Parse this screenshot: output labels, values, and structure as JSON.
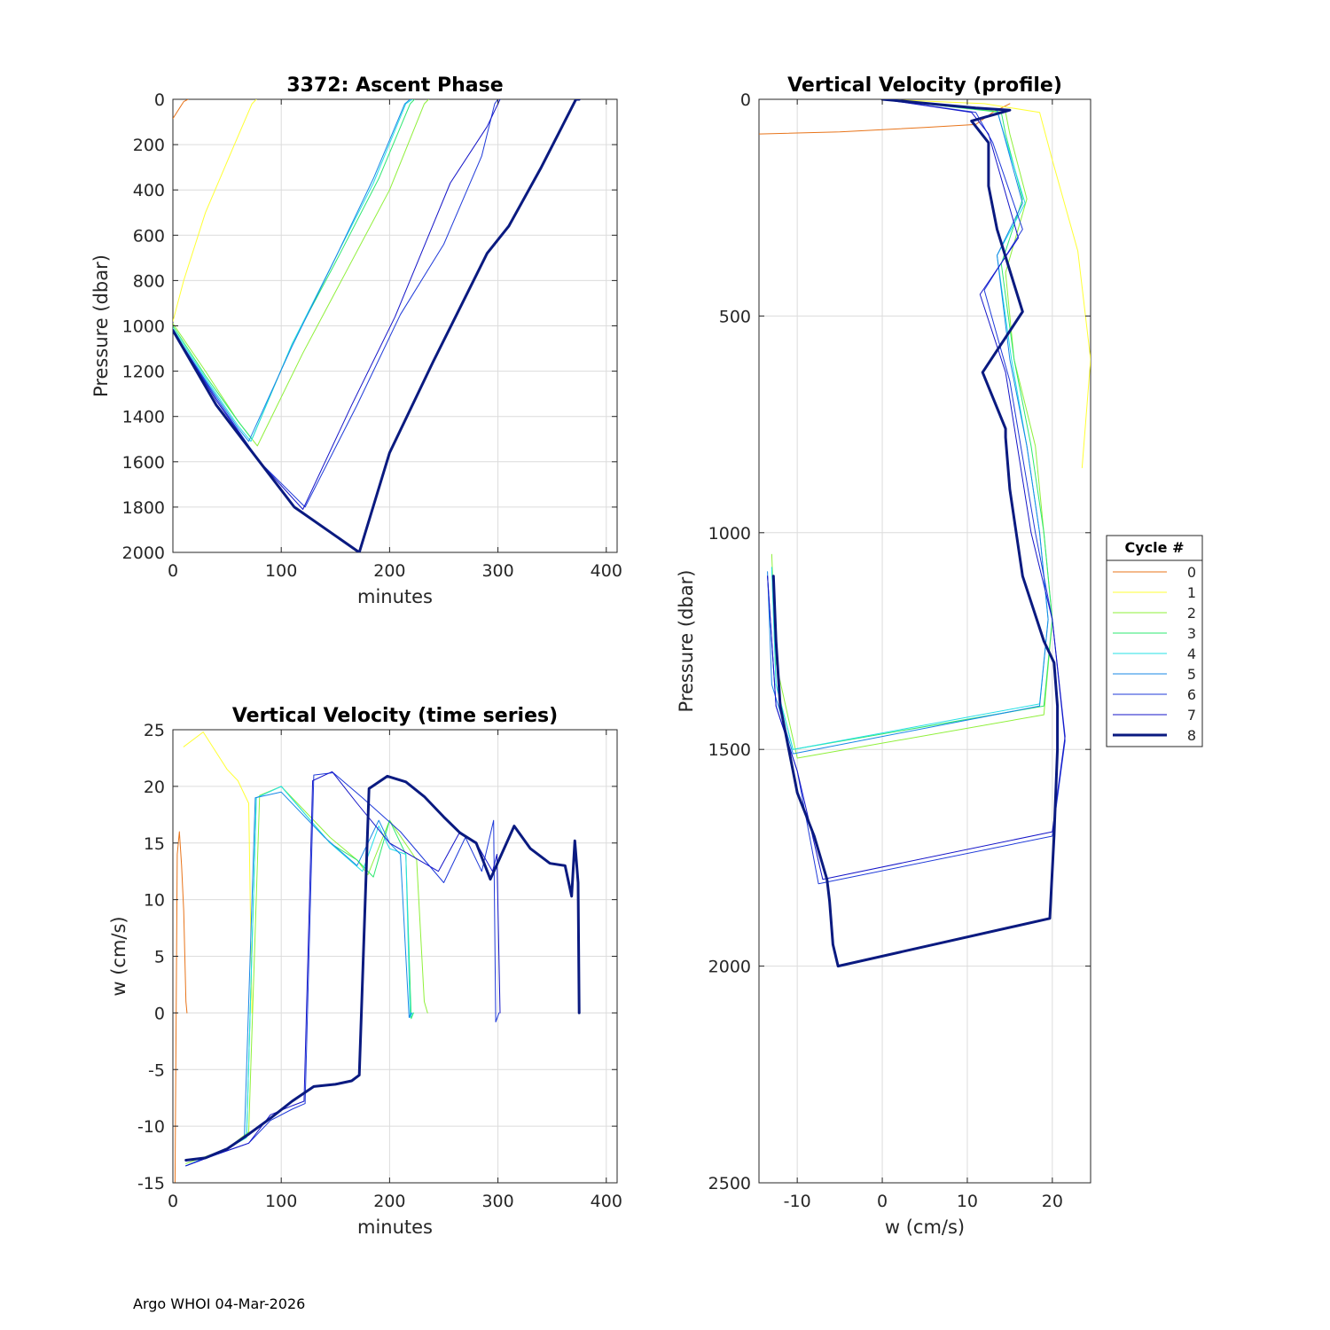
{
  "footer": "Argo WHOI 04-Mar-2026",
  "legend": {
    "title": "Cycle #",
    "placement": "right of profile panel",
    "entries": [
      {
        "label": "0",
        "color": "#e8741a",
        "width": 1
      },
      {
        "label": "1",
        "color": "#ffff33",
        "width": 1
      },
      {
        "label": "2",
        "color": "#8ff03a",
        "width": 1
      },
      {
        "label": "3",
        "color": "#2ee870",
        "width": 1
      },
      {
        "label": "4",
        "color": "#26e0e6",
        "width": 1
      },
      {
        "label": "5",
        "color": "#1787e6",
        "width": 1
      },
      {
        "label": "6",
        "color": "#1f3ad9",
        "width": 1
      },
      {
        "label": "7",
        "color": "#1414c8",
        "width": 1
      },
      {
        "label": "8",
        "color": "#0a1a80",
        "width": 3
      }
    ]
  },
  "chart_data": [
    {
      "id": "ascent",
      "type": "line",
      "title": "3372: Ascent Phase",
      "xlabel": "minutes",
      "ylabel": "Pressure (dbar)",
      "xlim": [
        0,
        410
      ],
      "ylim": [
        0,
        2000
      ],
      "y_reversed": true,
      "xticks": [
        0,
        100,
        200,
        300,
        400
      ],
      "yticks": [
        0,
        200,
        400,
        600,
        800,
        1000,
        1200,
        1400,
        1600,
        1800,
        2000
      ],
      "xticklabels": [
        "0",
        "100",
        "200",
        "300",
        "400"
      ],
      "yticklabels": [
        "0",
        "200",
        "400",
        "600",
        "800",
        "1000",
        "1200",
        "1400",
        "1600",
        "1800",
        "2000"
      ],
      "grid": true,
      "series": [
        {
          "name": "0",
          "x": [
            0,
            6,
            10,
            14
          ],
          "y": [
            85,
            40,
            10,
            0
          ]
        },
        {
          "name": "1",
          "x": [
            0,
            10,
            30,
            55,
            73,
            77
          ],
          "y": [
            980,
            800,
            500,
            220,
            20,
            0
          ]
        },
        {
          "name": "2",
          "x": [
            0,
            30,
            60,
            78,
            120,
            160,
            200,
            232,
            236
          ],
          "y": [
            990,
            1200,
            1420,
            1530,
            1120,
            760,
            400,
            20,
            0
          ]
        },
        {
          "name": "3",
          "x": [
            0,
            30,
            60,
            73,
            110,
            150,
            190,
            219,
            223
          ],
          "y": [
            1000,
            1220,
            1420,
            1500,
            1080,
            720,
            350,
            20,
            0
          ]
        },
        {
          "name": "4",
          "x": [
            0,
            30,
            60,
            72,
            110,
            150,
            185,
            215,
            221
          ],
          "y": [
            1010,
            1230,
            1440,
            1510,
            1080,
            700,
            370,
            20,
            0
          ]
        },
        {
          "name": "5",
          "x": [
            0,
            30,
            60,
            70,
            110,
            150,
            185,
            214,
            219
          ],
          "y": [
            1020,
            1240,
            1450,
            1510,
            1090,
            700,
            350,
            20,
            0
          ]
        },
        {
          "name": "6",
          "x": [
            0,
            40,
            80,
            122,
            170,
            210,
            250,
            285,
            297,
            300
          ],
          "y": [
            1020,
            1320,
            1600,
            1800,
            1350,
            950,
            640,
            250,
            20,
            0
          ]
        },
        {
          "name": "7",
          "x": [
            0,
            40,
            80,
            120,
            165,
            205,
            256,
            290,
            300,
            302
          ],
          "y": [
            1020,
            1330,
            1600,
            1810,
            1350,
            960,
            370,
            120,
            20,
            0
          ]
        },
        {
          "name": "8",
          "x": [
            0,
            40,
            80,
            112,
            172,
            200,
            240,
            290,
            310,
            340,
            372,
            375
          ],
          "y": [
            1020,
            1350,
            1600,
            1800,
            2000,
            1560,
            1160,
            680,
            560,
            300,
            0,
            0
          ]
        }
      ]
    },
    {
      "id": "wtime",
      "type": "line",
      "title": "Vertical Velocity (time series)",
      "xlabel": "minutes",
      "ylabel": "w (cm/s)",
      "xlim": [
        0,
        410
      ],
      "ylim": [
        -15,
        25
      ],
      "xticks": [
        0,
        100,
        200,
        300,
        400
      ],
      "yticks": [
        -15,
        -10,
        -5,
        0,
        5,
        10,
        15,
        20,
        25
      ],
      "xticklabels": [
        "0",
        "100",
        "200",
        "300",
        "400"
      ],
      "yticklabels": [
        "-15",
        "-10",
        "-5",
        "0",
        "5",
        "10",
        "15",
        "20",
        "25"
      ],
      "grid": true,
      "series": [
        {
          "name": "0",
          "x": [
            2,
            4,
            6,
            8,
            10,
            12,
            13
          ],
          "y": [
            -15,
            14,
            16,
            13,
            9,
            1,
            0
          ]
        },
        {
          "name": "1",
          "x": [
            10,
            28,
            50,
            60,
            70,
            73
          ],
          "y": [
            23.5,
            24.8,
            21.5,
            20.5,
            18.5,
            0
          ]
        },
        {
          "name": "2",
          "x": [
            12,
            50,
            70,
            80,
            100,
            145,
            170,
            180,
            200,
            225,
            232,
            235
          ],
          "y": [
            -13.3,
            -12,
            -10.5,
            19.2,
            20,
            15.5,
            13.5,
            12.2,
            17,
            13.5,
            1,
            0
          ]
        },
        {
          "name": "3",
          "x": [
            12,
            50,
            68,
            77,
            100,
            145,
            170,
            185,
            200,
            215,
            220,
            222
          ],
          "y": [
            -13.5,
            -12,
            -11,
            19,
            20,
            15,
            13.5,
            12,
            17,
            14,
            -0.5,
            0
          ]
        },
        {
          "name": "4",
          "x": [
            12,
            50,
            68,
            77,
            100,
            145,
            175,
            190,
            200,
            215,
            219,
            221
          ],
          "y": [
            -13.5,
            -12,
            -11,
            19,
            20,
            15,
            12.5,
            16.5,
            14.5,
            14,
            -0.4,
            0
          ]
        },
        {
          "name": "5",
          "x": [
            12,
            50,
            66,
            76,
            100,
            140,
            170,
            190,
            200,
            210,
            218,
            220
          ],
          "y": [
            -13.5,
            -12,
            -11,
            19,
            19.5,
            15.5,
            13,
            17,
            15,
            14,
            -0.4,
            0
          ]
        },
        {
          "name": "6",
          "x": [
            12,
            40,
            70,
            90,
            110,
            122,
            130,
            148,
            175,
            210,
            250,
            270,
            285,
            296,
            298,
            301
          ],
          "y": [
            -13.5,
            -12.5,
            -11.5,
            -9.5,
            -8.5,
            -8,
            21,
            21.2,
            19,
            16,
            11.5,
            15.5,
            12.5,
            17,
            -0.8,
            0
          ]
        },
        {
          "name": "7",
          "x": [
            12,
            40,
            70,
            90,
            110,
            121,
            129,
            147,
            170,
            200,
            245,
            265,
            280,
            295,
            299,
            302
          ],
          "y": [
            -13.5,
            -12.5,
            -11.5,
            -9,
            -8.2,
            -7.8,
            20.5,
            21.3,
            18.5,
            15,
            12.5,
            16,
            15,
            12.5,
            14,
            0
          ]
        },
        {
          "name": "8",
          "x": [
            12,
            30,
            50,
            70,
            90,
            110,
            130,
            150,
            165,
            172,
            181,
            198,
            215,
            232,
            250,
            265,
            280,
            293,
            315,
            330,
            348,
            362,
            368,
            371,
            374,
            375
          ],
          "y": [
            -13,
            -12.8,
            -12,
            -10.7,
            -9.3,
            -7.8,
            -6.5,
            -6.3,
            -6,
            -5.5,
            19.8,
            20.9,
            20.4,
            19.1,
            17.3,
            15.9,
            15,
            11.8,
            16.5,
            14.5,
            13.2,
            13,
            10.3,
            15.2,
            11.5,
            0
          ]
        }
      ]
    },
    {
      "id": "wprofile",
      "type": "line",
      "title": "Vertical Velocity (profile)",
      "xlabel": "w (cm/s)",
      "ylabel": "Pressure (dbar)",
      "xlim": [
        -14.5,
        24.5
      ],
      "ylim": [
        0,
        2500
      ],
      "y_reversed": true,
      "xticks": [
        -10,
        0,
        10,
        20
      ],
      "yticks": [
        0,
        500,
        1000,
        1500,
        2000,
        2500
      ],
      "xticklabels": [
        "-10",
        "0",
        "10",
        "20"
      ],
      "yticklabels": [
        "0",
        "500",
        "1000",
        "1500",
        "2000",
        "2500"
      ],
      "grid": true,
      "series": [
        {
          "name": "0",
          "x": [
            -14.5,
            -5,
            5,
            11,
            13,
            15
          ],
          "y": [
            80,
            75,
            65,
            58,
            30,
            10
          ]
        },
        {
          "name": "1",
          "x": [
            0,
            12,
            18.5,
            20,
            23,
            24.5,
            23.5
          ],
          "y": [
            0,
            10,
            30,
            140,
            350,
            600,
            850
          ]
        },
        {
          "name": "2",
          "x": [
            -13,
            -12.5,
            -10,
            19,
            20,
            19,
            18,
            15.5,
            14.5,
            17,
            15,
            14.5,
            0
          ],
          "y": [
            1050,
            1300,
            1520,
            1420,
            1200,
            1000,
            800,
            600,
            400,
            230,
            80,
            30,
            0
          ]
        },
        {
          "name": "3",
          "x": [
            -13,
            -12.5,
            -10.5,
            19,
            20,
            19,
            17.5,
            15.5,
            14,
            16.5,
            14.5,
            14,
            0
          ],
          "y": [
            1080,
            1350,
            1500,
            1400,
            1200,
            1000,
            800,
            600,
            380,
            230,
            80,
            30,
            0
          ]
        },
        {
          "name": "4",
          "x": [
            -13,
            -12.5,
            -10.5,
            18.5,
            19.5,
            18.5,
            17,
            15.2,
            13.5,
            16.8,
            14,
            13.5,
            0
          ],
          "y": [
            1080,
            1350,
            1500,
            1395,
            1200,
            1000,
            800,
            600,
            360,
            240,
            60,
            25,
            0
          ]
        },
        {
          "name": "5",
          "x": [
            -13.5,
            -13,
            -10.5,
            18.5,
            19.5,
            18.5,
            17,
            15,
            13.5,
            16.5,
            14,
            13.5,
            0
          ],
          "y": [
            1090,
            1350,
            1510,
            1400,
            1200,
            1000,
            800,
            600,
            360,
            240,
            60,
            25,
            0
          ]
        },
        {
          "name": "6",
          "x": [
            -13.5,
            -12.5,
            -10,
            -7.5,
            20,
            21.5,
            20,
            18,
            15,
            12,
            16.5,
            13,
            11,
            0
          ],
          "y": [
            1100,
            1400,
            1550,
            1810,
            1700,
            1480,
            1200,
            1000,
            650,
            440,
            300,
            100,
            30,
            0
          ]
        },
        {
          "name": "7",
          "x": [
            -13.5,
            -12.5,
            -10,
            -7,
            20,
            21.5,
            20,
            17.5,
            14.5,
            11.5,
            16,
            12.5,
            10.5,
            0
          ],
          "y": [
            1100,
            1400,
            1550,
            1800,
            1690,
            1470,
            1200,
            1000,
            630,
            450,
            320,
            80,
            30,
            0
          ]
        },
        {
          "name": "8",
          "x": [
            -12.8,
            -12.5,
            -12,
            -11,
            -10,
            -8,
            -6.5,
            -6.2,
            -5.8,
            -5.2,
            19.7,
            20.2,
            20.6,
            20.6,
            20.2,
            19,
            16.5,
            15,
            14.5,
            14.5,
            11.8,
            16.5,
            13.5,
            12.5,
            12.5,
            10.5,
            15,
            11,
            0
          ],
          "y": [
            1100,
            1250,
            1400,
            1500,
            1600,
            1700,
            1800,
            1850,
            1950,
            2000,
            1890,
            1700,
            1500,
            1400,
            1300,
            1250,
            1100,
            900,
            780,
            760,
            630,
            490,
            300,
            200,
            100,
            50,
            25,
            20,
            0
          ]
        }
      ]
    }
  ]
}
